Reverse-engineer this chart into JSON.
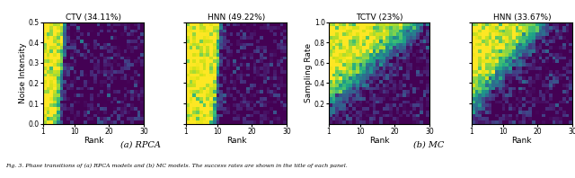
{
  "panels": [
    {
      "title": "CTV (34.11%)",
      "xlabel": "Rank",
      "ylabel": "Noise Intensity",
      "xlim": [
        1,
        30
      ],
      "ylim": [
        0,
        0.5
      ],
      "xticks": [
        1,
        10,
        20,
        30
      ],
      "yticks": [
        0,
        0.1,
        0.2,
        0.3,
        0.4,
        0.5
      ],
      "type": "RPCA",
      "boundary_rank": 5.0,
      "sharpness": 2.5
    },
    {
      "title": "HNN (49.22%)",
      "xlabel": "Rank",
      "ylabel": "Noise Intensity",
      "xlim": [
        1,
        30
      ],
      "ylim": [
        0,
        0.5
      ],
      "xticks": [
        1,
        10,
        20,
        30
      ],
      "yticks": [
        0,
        0.1,
        0.2,
        0.3,
        0.4,
        0.5
      ],
      "type": "RPCA",
      "boundary_rank": 9.0,
      "sharpness": 2.5
    },
    {
      "title": "TCTV (23%)",
      "xlabel": "Rank",
      "ylabel": "Sampling Rate",
      "xlim": [
        1,
        30
      ],
      "ylim": [
        0,
        1
      ],
      "xticks": [
        1,
        10,
        20,
        30
      ],
      "yticks": [
        0.2,
        0.4,
        0.6,
        0.8,
        1.0
      ],
      "type": "MC",
      "boundary_slope": 0.031,
      "boundary_intercept": 0.18,
      "sharpness": 10.0
    },
    {
      "title": "HNN (33.67%)",
      "xlabel": "Rank",
      "ylabel": "Sampling Rate",
      "xlim": [
        1,
        30
      ],
      "ylim": [
        0,
        1
      ],
      "xticks": [
        1,
        10,
        20,
        30
      ],
      "yticks": [
        0.2,
        0.4,
        0.6,
        0.8,
        1.0
      ],
      "type": "MC",
      "boundary_slope": 0.04,
      "boundary_intercept": 0.15,
      "sharpness": 10.0
    }
  ],
  "subfig_labels": [
    "(a) RPCA",
    "(b) MC"
  ],
  "caption": "Fig. 3. Phase transitions of (a) RPCA models and (b) MC models. The success rates are shown in the title of each panel.",
  "colormap": "viridis",
  "nx": 30,
  "ny": 30,
  "noise_level": 0.12,
  "background_color": "#ffffff"
}
